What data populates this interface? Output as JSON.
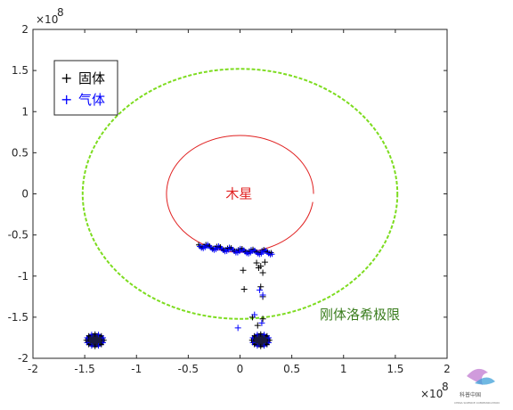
{
  "chart_data": {
    "type": "scatter",
    "x_exponent_label": "×10",
    "x_exponent": "8",
    "y_exponent_label": "×10",
    "y_exponent": "8",
    "xlim": [
      -2,
      2
    ],
    "ylim": [
      -2,
      2
    ],
    "xticks": [
      "-2",
      "-1.5",
      "-1",
      "-0.5",
      "0",
      "0.5",
      "1",
      "1.5",
      "2"
    ],
    "yticks": [
      "2",
      "1.5",
      "1",
      "0.5",
      "0",
      "-0.5",
      "-1",
      "-1.5",
      "-2"
    ],
    "grid": false,
    "legend_position": "top-left",
    "legend": [
      {
        "marker": "+",
        "label": "固体",
        "color": "#000000"
      },
      {
        "marker": "+",
        "label": "气体",
        "color": "#0000ff"
      }
    ],
    "annotations": [
      {
        "text": "木星",
        "x": -0.01,
        "y": 0.0,
        "color": "#e02020"
      },
      {
        "text": "刚体洛希极限",
        "x": 0.77,
        "y": -1.47,
        "color": "#3a7d1e"
      }
    ],
    "curves": [
      {
        "name": "木星轨道",
        "color": "#e02020",
        "style": "solid",
        "center": [
          0.0,
          0.0
        ],
        "radius": 0.71,
        "arc_from_deg": 0,
        "arc_to_deg": 352
      },
      {
        "name": "刚体洛希极限",
        "color": "#7ddc1f",
        "style": "dashed",
        "center": [
          0.0,
          0.0
        ],
        "radius": 1.52
      }
    ],
    "series": [
      {
        "name": "固体",
        "color": "#000000",
        "points": [
          [
            0.03,
            -0.93
          ],
          [
            0.04,
            -1.16
          ],
          [
            0.12,
            -1.5
          ],
          [
            0.16,
            -0.84
          ],
          [
            0.18,
            -0.9
          ],
          [
            0.2,
            -0.88
          ],
          [
            0.22,
            -0.96
          ],
          [
            0.24,
            -0.83
          ],
          [
            0.2,
            -1.13
          ],
          [
            0.22,
            -1.25
          ],
          [
            0.17,
            -1.6
          ],
          [
            0.22,
            -1.52
          ]
        ]
      },
      {
        "name": "气体",
        "color": "#0000ff",
        "points": [
          [
            -0.02,
            -1.63
          ],
          [
            0.22,
            -1.23
          ],
          [
            0.19,
            -1.17
          ],
          [
            0.14,
            -1.47
          ],
          [
            0.21,
            -1.57
          ]
        ]
      }
    ],
    "clusters": [
      {
        "center": [
          -0.4,
          -0.62
        ],
        "extent": [
          0.0,
          -0.7
        ],
        "type": "band",
        "color": "mixed"
      },
      {
        "center": [
          -1.4,
          -1.78
        ],
        "type": "blob",
        "color": "mixed"
      },
      {
        "center": [
          0.2,
          -1.78
        ],
        "type": "blob",
        "color": "mixed"
      }
    ]
  },
  "watermark": {
    "text": "科普中国",
    "subtext": "CHINA SCIENCE COMMUNICATION"
  }
}
